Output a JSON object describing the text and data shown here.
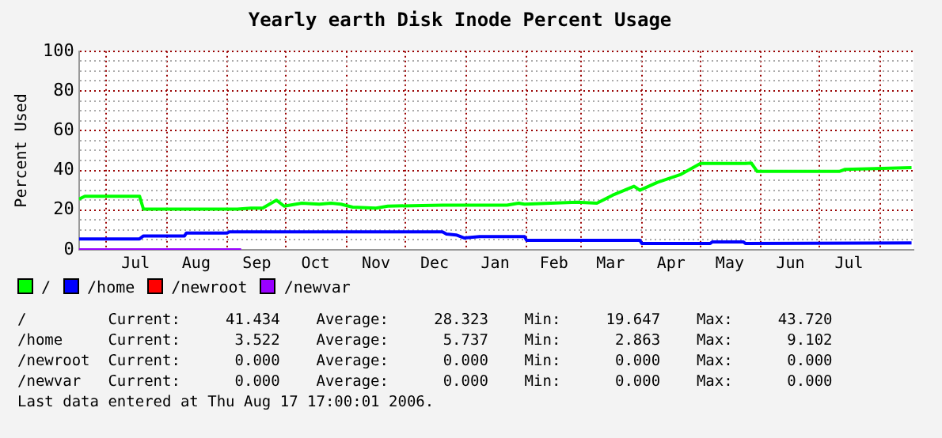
{
  "chart_data": {
    "type": "line",
    "title": "Yearly earth Disk Inode Percent Usage",
    "ylabel": "Percent Used",
    "xlim": [
      "2005-06-17",
      "2006-08-18"
    ],
    "xticks": [
      {
        "value": "2005-07-01",
        "label": null
      },
      {
        "value": "2005-07-16",
        "label": "Jul"
      },
      {
        "value": "2005-08-01",
        "label": null
      },
      {
        "value": "2005-08-16",
        "label": "Aug"
      },
      {
        "value": "2005-09-01",
        "label": null
      },
      {
        "value": "2005-09-16",
        "label": "Sep"
      },
      {
        "value": "2005-10-01",
        "label": null
      },
      {
        "value": "2005-10-16",
        "label": "Oct"
      },
      {
        "value": "2005-11-01",
        "label": null
      },
      {
        "value": "2005-11-16",
        "label": "Nov"
      },
      {
        "value": "2005-12-01",
        "label": null
      },
      {
        "value": "2005-12-16",
        "label": "Dec"
      },
      {
        "value": "2006-01-01",
        "label": null
      },
      {
        "value": "2006-01-16",
        "label": "Jan"
      },
      {
        "value": "2006-02-01",
        "label": null
      },
      {
        "value": "2006-02-15",
        "label": "Feb"
      },
      {
        "value": "2006-03-01",
        "label": null
      },
      {
        "value": "2006-03-16",
        "label": "Mar"
      },
      {
        "value": "2006-04-01",
        "label": null
      },
      {
        "value": "2006-04-16",
        "label": "Apr"
      },
      {
        "value": "2006-05-01",
        "label": null
      },
      {
        "value": "2006-05-16",
        "label": "May"
      },
      {
        "value": "2006-06-01",
        "label": null
      },
      {
        "value": "2006-06-16",
        "label": "Jun"
      },
      {
        "value": "2006-07-01",
        "label": null
      },
      {
        "value": "2006-07-16",
        "label": "Jul"
      },
      {
        "value": "2006-08-01",
        "label": null
      }
    ],
    "ylim": [
      0,
      100
    ],
    "yticks": [
      0,
      {
        "value": 5,
        "label": null
      },
      {
        "value": 10,
        "label": null
      },
      {
        "value": 15,
        "label": null
      },
      20,
      {
        "value": 25,
        "label": null
      },
      {
        "value": 30,
        "label": null
      },
      {
        "value": 35,
        "label": null
      },
      40,
      {
        "value": 45,
        "label": null
      },
      {
        "value": 50,
        "label": null
      },
      {
        "value": 55,
        "label": null
      },
      60,
      {
        "value": 65,
        "label": null
      },
      {
        "value": 70,
        "label": null
      },
      {
        "value": 75,
        "label": null
      },
      80,
      {
        "value": 85,
        "label": null
      },
      {
        "value": 90,
        "label": null
      },
      {
        "value": 95,
        "label": null
      },
      100
    ],
    "grid": true,
    "legend": "bottom",
    "marker": "none",
    "line_style": "solid",
    "series": [
      {
        "name": "/",
        "color": "#00ff00",
        "x": [
          "2005-06-17",
          "2005-06-20",
          "2005-07-18",
          "2005-07-20",
          "2005-09-06",
          "2005-09-13",
          "2005-09-19",
          "2005-09-26",
          "2005-09-30",
          "2005-10-09",
          "2005-10-18",
          "2005-10-24",
          "2005-10-29",
          "2005-11-04",
          "2005-11-16",
          "2005-11-22",
          "2005-12-20",
          "2005-12-26",
          "2006-01-22",
          "2006-01-28",
          "2006-01-31",
          "2006-02-27",
          "2006-03-09",
          "2006-03-17",
          "2006-03-28",
          "2006-03-31",
          "2006-04-09",
          "2006-04-21",
          "2006-05-01",
          "2006-05-24",
          "2006-05-27",
          "2006-05-30",
          "2006-07-11",
          "2006-07-14",
          "2006-08-17"
        ],
        "values": [
          25.5,
          27,
          27,
          20.5,
          20.5,
          21,
          21,
          25,
          22,
          23.5,
          23,
          23.5,
          23,
          21.5,
          21,
          22,
          22.5,
          22.5,
          22.5,
          23.5,
          23,
          24,
          23.5,
          27.5,
          32,
          30,
          34,
          38,
          43.5,
          43.5,
          43.7,
          39.5,
          39.5,
          40.5,
          41.4
        ]
      },
      {
        "name": "/home",
        "color": "#0000ff",
        "x": [
          "2005-06-17",
          "2005-07-18",
          "2005-07-20",
          "2005-08-10",
          "2005-08-11",
          "2005-09-01",
          "2005-09-02",
          "2005-12-20",
          "2005-12-22",
          "2005-12-27",
          "2005-12-31",
          "2006-01-08",
          "2006-01-31",
          "2006-02-01",
          "2006-03-31",
          "2006-04-01",
          "2006-05-06",
          "2006-05-07",
          "2006-05-23",
          "2006-05-24",
          "2006-08-17"
        ],
        "values": [
          5.5,
          5.5,
          7,
          7,
          8.5,
          8.5,
          9.1,
          9.1,
          8,
          7.5,
          6,
          6.7,
          6.7,
          4.8,
          4.8,
          3.2,
          3.2,
          4,
          4,
          3.2,
          3.5
        ]
      },
      {
        "name": "/newroot",
        "color": "#ff0000"
      },
      {
        "name": "/newvar",
        "color": "#9900ff",
        "x": [
          "2005-06-17",
          "2005-09-08"
        ],
        "values": [
          0,
          0
        ]
      }
    ],
    "annotations": [
      "/         Current:     41.434    Average:     28.323    Min:     19.647    Max:     43.720",
      "/home     Current:      3.522    Average:      5.737    Min:      2.863    Max:      9.102",
      "/newroot  Current:      0.000    Average:      0.000    Min:      0.000    Max:      0.000",
      "/newvar   Current:      0.000    Average:      0.000    Min:      0.000    Max:      0.000",
      "Last data entered at Thu Aug 17 17:00:01 2006."
    ]
  }
}
